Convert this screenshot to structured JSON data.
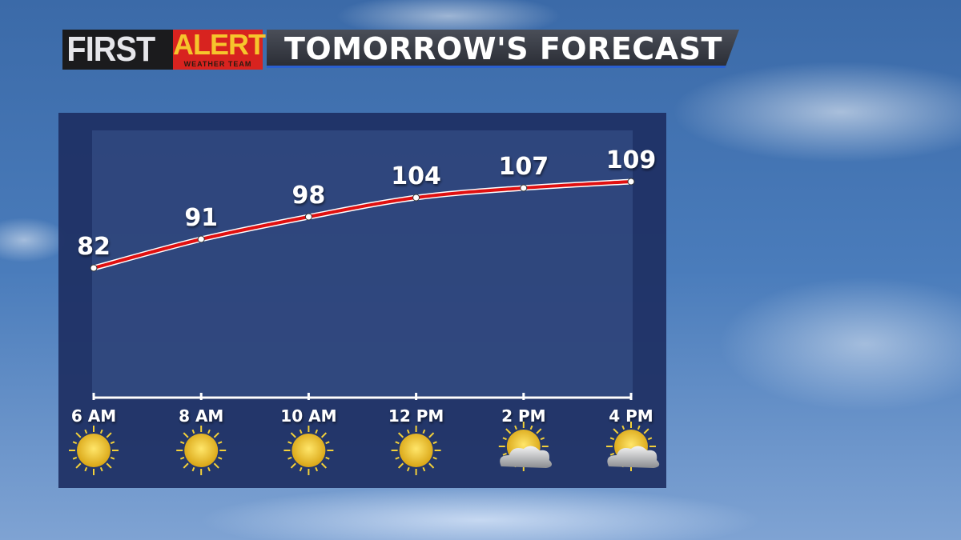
{
  "header": {
    "brand_first": "FIRST",
    "brand_alert": "ALERT",
    "brand_sub": "WEATHER TEAM",
    "title": "TOMORROW'S FORECAST"
  },
  "colors": {
    "line": "#e01010",
    "panel": "#1e2f63",
    "brand_red": "#d8231f",
    "brand_gold": "#f6c52c"
  },
  "chart_data": {
    "type": "line",
    "categories": [
      "6 AM",
      "8 AM",
      "10 AM",
      "12 PM",
      "2 PM",
      "4 PM"
    ],
    "values": [
      82,
      91,
      98,
      104,
      107,
      109
    ],
    "data_labels": [
      "82",
      "91",
      "98",
      "104",
      "107",
      "109"
    ],
    "conditions": [
      "sunny",
      "sunny",
      "sunny",
      "sunny",
      "partly-cloudy",
      "partly-cloudy"
    ],
    "ylim": [
      42,
      125
    ],
    "grid": false,
    "title": "",
    "xlabel": "",
    "ylabel": ""
  }
}
